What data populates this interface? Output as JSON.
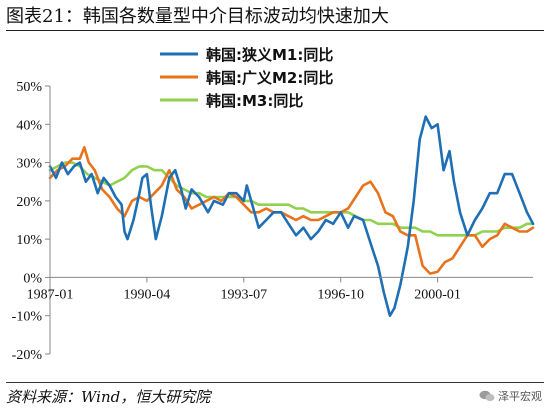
{
  "title": "图表21：韩国各数量型中介目标波动均快速加大",
  "source": "资料来源：Wind，恒大研究院",
  "watermark": "泽平宏观",
  "chart_data": {
    "type": "line",
    "xlabel": "",
    "ylabel": "",
    "ylim": [
      -20,
      50
    ],
    "xlim": [
      1987.0,
      2003.2
    ],
    "grid": false,
    "legend_position": "top-center",
    "y_ticks": [
      {
        "value": 50,
        "label": "50%"
      },
      {
        "value": 40,
        "label": "40%"
      },
      {
        "value": 30,
        "label": "30%"
      },
      {
        "value": 20,
        "label": "20%"
      },
      {
        "value": 10,
        "label": "10%"
      },
      {
        "value": 0,
        "label": "0%"
      },
      {
        "value": -10,
        "label": "-10%"
      },
      {
        "value": -20,
        "label": "-20%"
      }
    ],
    "x_ticks": [
      {
        "value": 1987.0,
        "label": "1987-01"
      },
      {
        "value": 1990.25,
        "label": "1990-04"
      },
      {
        "value": 1993.5,
        "label": "1993-07"
      },
      {
        "value": 1996.75,
        "label": "1996-10"
      },
      {
        "value": 2000.0,
        "label": "2000-01"
      }
    ],
    "series": [
      {
        "name": "韩国:狭义M1:同比",
        "color": "#1f6fb4",
        "points": [
          [
            1987.0,
            29
          ],
          [
            1987.2,
            26
          ],
          [
            1987.4,
            30
          ],
          [
            1987.6,
            27
          ],
          [
            1987.8,
            29
          ],
          [
            1988.0,
            30
          ],
          [
            1988.2,
            25
          ],
          [
            1988.4,
            27
          ],
          [
            1988.6,
            22
          ],
          [
            1988.8,
            26
          ],
          [
            1989.0,
            24
          ],
          [
            1989.2,
            21
          ],
          [
            1989.4,
            19
          ],
          [
            1989.5,
            12
          ],
          [
            1989.6,
            10
          ],
          [
            1989.8,
            15
          ],
          [
            1990.0,
            22
          ],
          [
            1990.1,
            26
          ],
          [
            1990.25,
            27
          ],
          [
            1990.4,
            18
          ],
          [
            1990.55,
            10
          ],
          [
            1990.75,
            16
          ],
          [
            1991.0,
            26
          ],
          [
            1991.2,
            28
          ],
          [
            1991.4,
            23
          ],
          [
            1991.55,
            18
          ],
          [
            1991.75,
            23
          ],
          [
            1992.0,
            21
          ],
          [
            1992.3,
            17
          ],
          [
            1992.5,
            20
          ],
          [
            1992.8,
            19
          ],
          [
            1993.0,
            22
          ],
          [
            1993.25,
            22
          ],
          [
            1993.5,
            20
          ],
          [
            1993.6,
            24
          ],
          [
            1993.75,
            20
          ],
          [
            1994.0,
            13
          ],
          [
            1994.25,
            15
          ],
          [
            1994.5,
            17
          ],
          [
            1994.75,
            17
          ],
          [
            1995.0,
            14
          ],
          [
            1995.25,
            11
          ],
          [
            1995.5,
            13
          ],
          [
            1995.75,
            10
          ],
          [
            1996.0,
            12
          ],
          [
            1996.25,
            15
          ],
          [
            1996.5,
            14
          ],
          [
            1996.75,
            17
          ],
          [
            1997.0,
            13
          ],
          [
            1997.2,
            16
          ],
          [
            1997.5,
            15
          ],
          [
            1997.75,
            9
          ],
          [
            1998.0,
            3
          ],
          [
            1998.2,
            -4
          ],
          [
            1998.4,
            -10
          ],
          [
            1998.55,
            -8
          ],
          [
            1998.75,
            -2
          ],
          [
            1999.0,
            8
          ],
          [
            1999.2,
            20
          ],
          [
            1999.4,
            36
          ],
          [
            1999.6,
            42
          ],
          [
            1999.8,
            39
          ],
          [
            2000.0,
            40
          ],
          [
            2000.2,
            28
          ],
          [
            2000.4,
            33
          ],
          [
            2000.55,
            25
          ],
          [
            2000.75,
            17
          ],
          [
            2001.0,
            11
          ],
          [
            2001.25,
            15
          ],
          [
            2001.5,
            18
          ],
          [
            2001.75,
            22
          ],
          [
            2002.0,
            22
          ],
          [
            2002.25,
            27
          ],
          [
            2002.5,
            27
          ],
          [
            2002.75,
            22
          ],
          [
            2003.0,
            17
          ],
          [
            2003.2,
            14
          ]
        ]
      },
      {
        "name": "韩国:广义M2:同比",
        "color": "#e8731d",
        "points": [
          [
            1987.0,
            26
          ],
          [
            1987.25,
            28
          ],
          [
            1987.5,
            29
          ],
          [
            1987.75,
            31
          ],
          [
            1988.0,
            31
          ],
          [
            1988.15,
            34
          ],
          [
            1988.3,
            30
          ],
          [
            1988.5,
            28
          ],
          [
            1988.75,
            23
          ],
          [
            1989.0,
            21
          ],
          [
            1989.25,
            18
          ],
          [
            1989.5,
            16
          ],
          [
            1989.75,
            20
          ],
          [
            1990.0,
            21
          ],
          [
            1990.25,
            20
          ],
          [
            1990.5,
            22
          ],
          [
            1990.75,
            24
          ],
          [
            1991.0,
            28
          ],
          [
            1991.25,
            23
          ],
          [
            1991.5,
            21
          ],
          [
            1991.75,
            18
          ],
          [
            1992.0,
            19
          ],
          [
            1992.25,
            20
          ],
          [
            1992.5,
            21
          ],
          [
            1992.75,
            20
          ],
          [
            1993.0,
            22
          ],
          [
            1993.25,
            21
          ],
          [
            1993.5,
            19
          ],
          [
            1993.75,
            17
          ],
          [
            1994.0,
            17
          ],
          [
            1994.25,
            18
          ],
          [
            1994.5,
            17
          ],
          [
            1994.75,
            17
          ],
          [
            1995.0,
            16
          ],
          [
            1995.25,
            15
          ],
          [
            1995.5,
            16
          ],
          [
            1995.75,
            15
          ],
          [
            1996.0,
            15
          ],
          [
            1996.25,
            16
          ],
          [
            1996.5,
            17
          ],
          [
            1996.75,
            17
          ],
          [
            1997.0,
            18
          ],
          [
            1997.25,
            21
          ],
          [
            1997.5,
            24
          ],
          [
            1997.75,
            25
          ],
          [
            1998.0,
            22
          ],
          [
            1998.25,
            17
          ],
          [
            1998.5,
            16
          ],
          [
            1998.75,
            12
          ],
          [
            1999.0,
            11
          ],
          [
            1999.25,
            11
          ],
          [
            1999.5,
            3
          ],
          [
            1999.75,
            1
          ],
          [
            2000.0,
            1.5
          ],
          [
            2000.25,
            4
          ],
          [
            2000.5,
            5
          ],
          [
            2000.75,
            8
          ],
          [
            2001.0,
            11
          ],
          [
            2001.25,
            11
          ],
          [
            2001.5,
            8
          ],
          [
            2001.75,
            10
          ],
          [
            2002.0,
            11
          ],
          [
            2002.25,
            14
          ],
          [
            2002.5,
            13
          ],
          [
            2002.75,
            12
          ],
          [
            2003.0,
            12
          ],
          [
            2003.2,
            13
          ]
        ]
      },
      {
        "name": "韩国:M3:同比",
        "color": "#92d050",
        "points": [
          [
            1987.0,
            28
          ],
          [
            1987.25,
            29
          ],
          [
            1987.5,
            30
          ],
          [
            1987.75,
            30
          ],
          [
            1988.0,
            29
          ],
          [
            1988.25,
            27
          ],
          [
            1988.5,
            26
          ],
          [
            1988.75,
            25
          ],
          [
            1989.0,
            24
          ],
          [
            1989.25,
            25
          ],
          [
            1989.5,
            26
          ],
          [
            1989.75,
            28
          ],
          [
            1990.0,
            29
          ],
          [
            1990.25,
            29
          ],
          [
            1990.5,
            28
          ],
          [
            1990.75,
            28
          ],
          [
            1991.0,
            26
          ],
          [
            1991.25,
            24
          ],
          [
            1991.5,
            23
          ],
          [
            1991.75,
            22
          ],
          [
            1992.0,
            22
          ],
          [
            1992.25,
            21
          ],
          [
            1992.5,
            21
          ],
          [
            1992.75,
            21
          ],
          [
            1993.0,
            21
          ],
          [
            1993.25,
            21
          ],
          [
            1993.5,
            20
          ],
          [
            1993.75,
            20
          ],
          [
            1994.0,
            19
          ],
          [
            1994.25,
            19
          ],
          [
            1994.5,
            19
          ],
          [
            1994.75,
            19
          ],
          [
            1995.0,
            19
          ],
          [
            1995.25,
            18
          ],
          [
            1995.5,
            18
          ],
          [
            1995.75,
            17
          ],
          [
            1996.0,
            17
          ],
          [
            1996.25,
            17
          ],
          [
            1996.5,
            17
          ],
          [
            1996.75,
            17
          ],
          [
            1997.0,
            17
          ],
          [
            1997.25,
            16
          ],
          [
            1997.5,
            15
          ],
          [
            1997.75,
            15
          ],
          [
            1998.0,
            14
          ],
          [
            1998.25,
            14
          ],
          [
            1998.5,
            14
          ],
          [
            1998.75,
            13
          ],
          [
            1999.0,
            13
          ],
          [
            1999.25,
            13
          ],
          [
            1999.5,
            12
          ],
          [
            1999.75,
            12
          ],
          [
            2000.0,
            11
          ],
          [
            2000.25,
            11
          ],
          [
            2000.5,
            11
          ],
          [
            2000.75,
            11
          ],
          [
            2001.0,
            11
          ],
          [
            2001.25,
            11
          ],
          [
            2001.5,
            12
          ],
          [
            2001.75,
            12
          ],
          [
            2002.0,
            12
          ],
          [
            2002.25,
            13
          ],
          [
            2002.5,
            13
          ],
          [
            2002.75,
            13
          ],
          [
            2003.0,
            14
          ],
          [
            2003.2,
            14
          ]
        ]
      }
    ]
  }
}
